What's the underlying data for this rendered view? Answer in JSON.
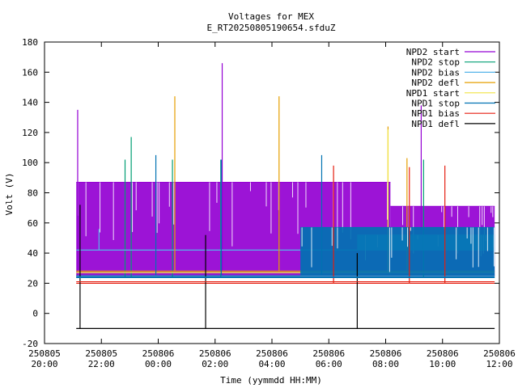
{
  "chart_data": {
    "type": "line",
    "title": "Voltages for MEX",
    "subtitle": "E_RT20250805190654.sfduZ",
    "xlabel": "Time (yymmdd HH:MM)",
    "ylabel": "Volt (V)",
    "ylim": [
      -20,
      180
    ],
    "yticks": [
      -20,
      0,
      20,
      40,
      60,
      80,
      100,
      120,
      140,
      160,
      180
    ],
    "xlim": [
      "2025-08-05 20:00",
      "2025-08-06 12:00"
    ],
    "xticks": [
      {
        "t": "2025-08-05 20:00",
        "date": "250805",
        "time": "20:00"
      },
      {
        "t": "2025-08-05 22:00",
        "date": "250805",
        "time": "22:00"
      },
      {
        "t": "2025-08-06 00:00",
        "date": "250806",
        "time": "00:00"
      },
      {
        "t": "2025-08-06 02:00",
        "date": "250806",
        "time": "02:00"
      },
      {
        "t": "2025-08-06 04:00",
        "date": "250806",
        "time": "04:00"
      },
      {
        "t": "2025-08-06 06:00",
        "date": "250806",
        "time": "06:00"
      },
      {
        "t": "2025-08-06 08:00",
        "date": "250806",
        "time": "08:00"
      },
      {
        "t": "2025-08-06 10:00",
        "date": "250806",
        "time": "10:00"
      },
      {
        "t": "2025-08-06 12:00",
        "date": "250806",
        "time": "12:00"
      }
    ],
    "grid": false,
    "legend_position": "top-right",
    "series": [
      {
        "name": "NPD2 start",
        "color": "#9400d3",
        "base": 25,
        "band": [
          {
            "t0": "2025-08-05 21:07",
            "t1": "2025-08-06 08:10",
            "y": 87
          },
          {
            "t0": "2025-08-06 08:10",
            "t1": "2025-08-06 11:50",
            "y": 71
          }
        ],
        "spikes": [
          {
            "t": "2025-08-05 21:10",
            "y": 135
          },
          {
            "t": "2025-08-06 02:15",
            "y": 166
          },
          {
            "t": "2025-08-06 09:15",
            "y": 138
          }
        ]
      },
      {
        "name": "NPD2 stop",
        "color": "#009e73",
        "base": 24,
        "band": [],
        "spikes": [
          {
            "t": "2025-08-05 22:50",
            "y": 102
          },
          {
            "t": "2025-08-05 23:03",
            "y": 117
          },
          {
            "t": "2025-08-06 00:30",
            "y": 102
          },
          {
            "t": "2025-08-06 02:12",
            "y": 102
          },
          {
            "t": "2025-08-06 09:20",
            "y": 102
          }
        ]
      },
      {
        "name": "NPD2 bias",
        "color": "#56b4e9",
        "base": 42,
        "band": [
          {
            "t0": "2025-08-06 07:00",
            "t1": "2025-08-06 11:50",
            "y": 52
          }
        ],
        "spikes": [
          {
            "t": "2025-08-05 21:55",
            "y": 56
          }
        ]
      },
      {
        "name": "NPD2 defl",
        "color": "#e69f00",
        "base": 28,
        "band": [],
        "spikes": [
          {
            "t": "2025-08-06 00:35",
            "y": 144
          },
          {
            "t": "2025-08-06 04:15",
            "y": 144
          },
          {
            "t": "2025-08-06 08:05",
            "y": 124
          },
          {
            "t": "2025-08-06 08:45",
            "y": 103
          }
        ]
      },
      {
        "name": "NPD1 start",
        "color": "#f0e442",
        "base": 27,
        "band": [],
        "spikes": [
          {
            "t": "2025-08-06 08:05",
            "y": 122
          }
        ]
      },
      {
        "name": "NPD1 stop",
        "color": "#0072b2",
        "base": 25,
        "band": [
          {
            "t0": "2025-08-06 05:00",
            "t1": "2025-08-06 11:50",
            "y": 57
          }
        ],
        "spikes": [
          {
            "t": "2025-08-05 23:55",
            "y": 105
          },
          {
            "t": "2025-08-06 02:13",
            "y": 102
          },
          {
            "t": "2025-08-06 05:45",
            "y": 105
          }
        ]
      },
      {
        "name": "NPD1 bias",
        "color": "#e51e10",
        "base": 20,
        "band": [],
        "spikes": [
          {
            "t": "2025-08-06 06:10",
            "y": 98
          },
          {
            "t": "2025-08-06 08:50",
            "y": 97
          },
          {
            "t": "2025-08-06 10:05",
            "y": 98
          }
        ]
      },
      {
        "name": "NPD1 defl",
        "color": "#000000",
        "base": -10,
        "band": [],
        "spikes": [
          {
            "t": "2025-08-05 21:15",
            "y": 72
          },
          {
            "t": "2025-08-06 01:40",
            "y": 52
          },
          {
            "t": "2025-08-06 07:00",
            "y": 40
          }
        ]
      }
    ]
  }
}
